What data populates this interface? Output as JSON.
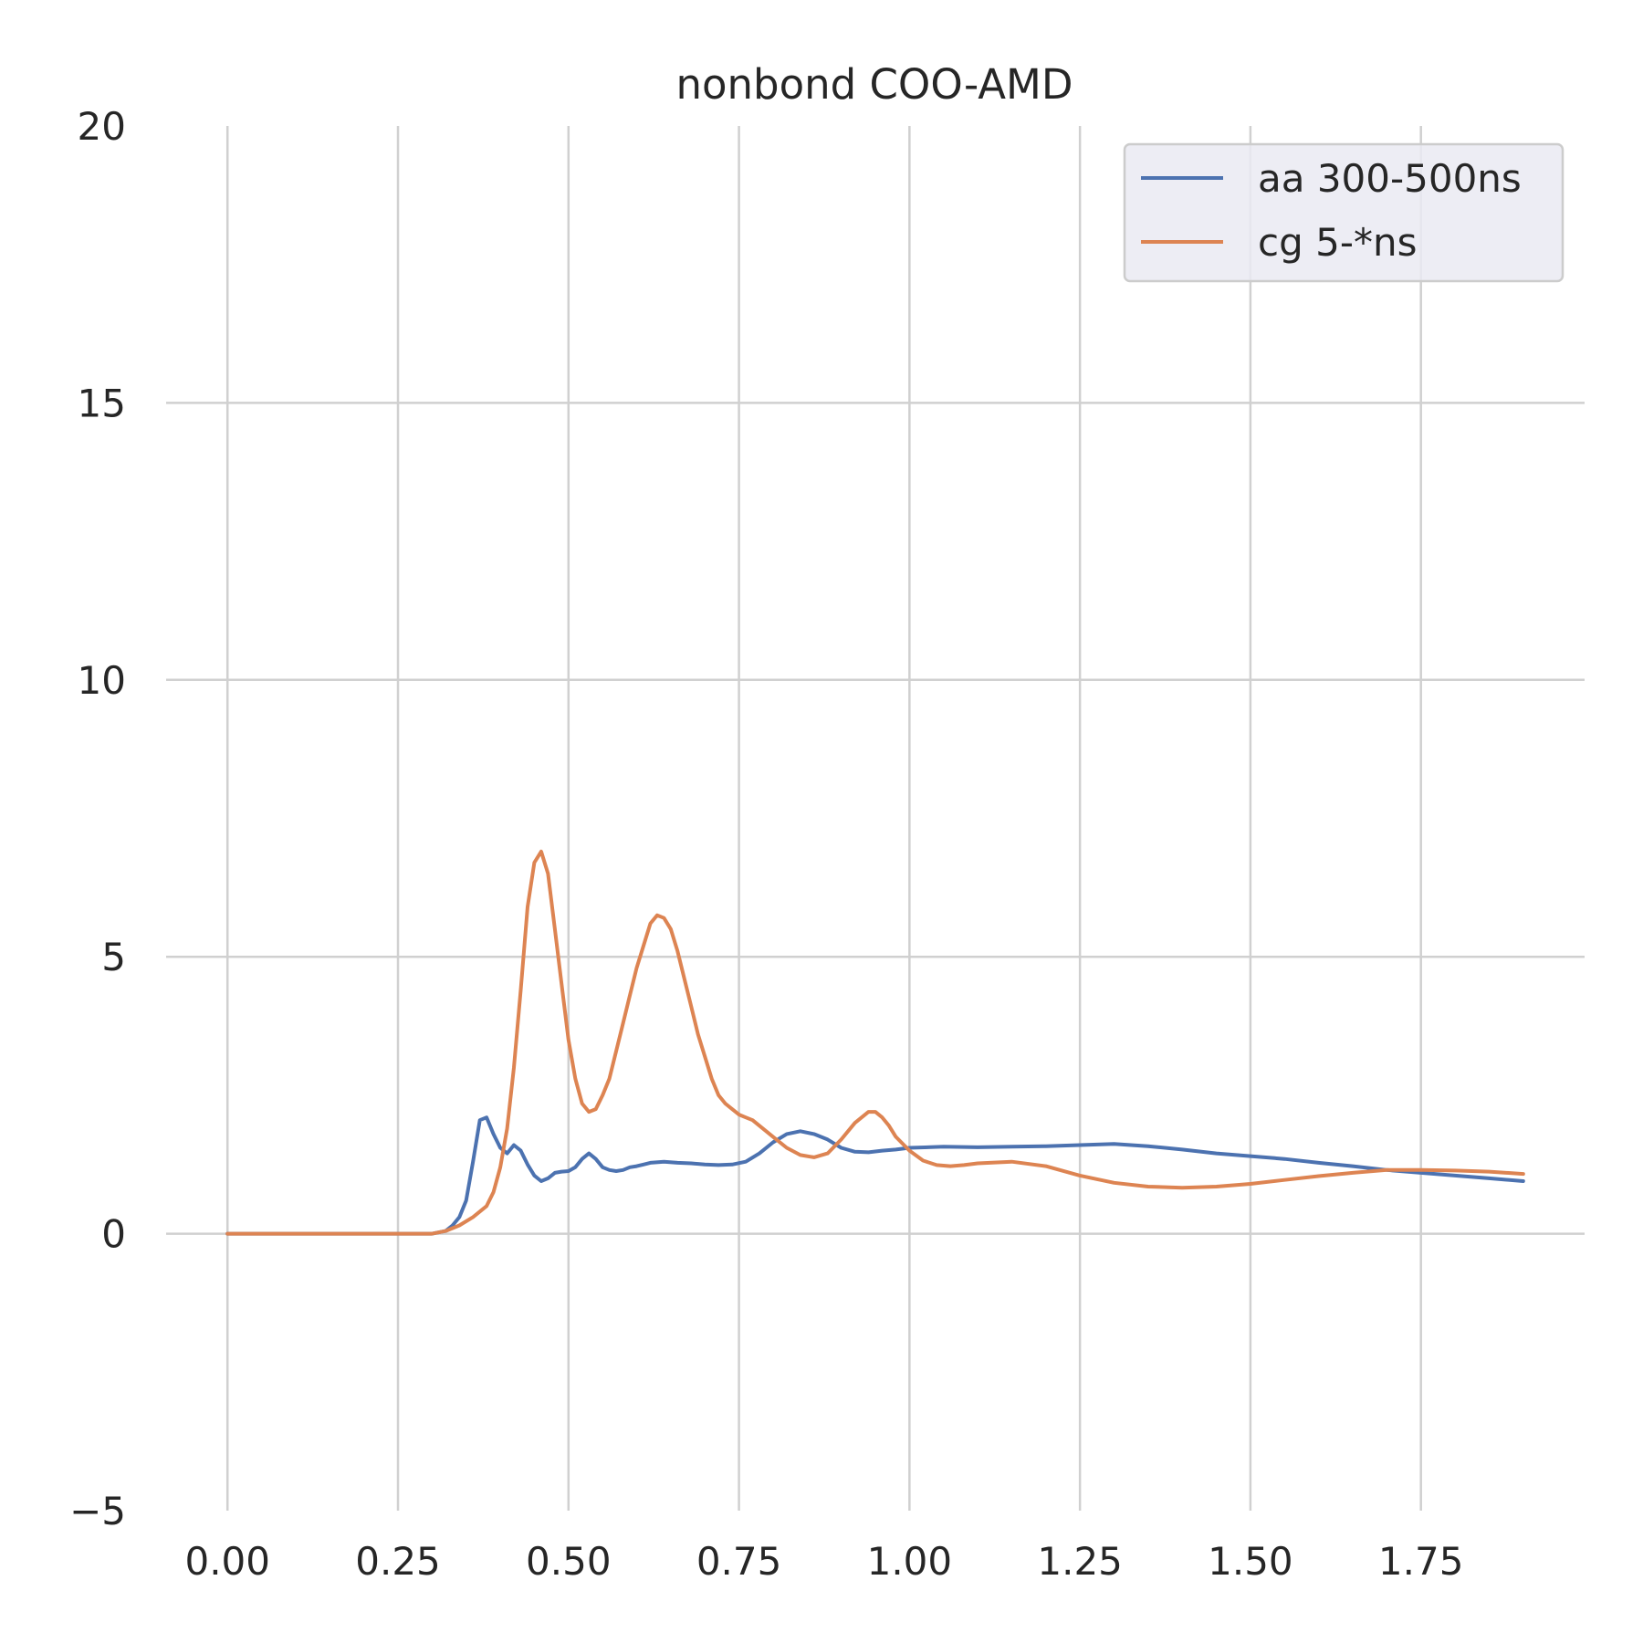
{
  "chart_data": {
    "type": "line",
    "title": "nonbond COO-AMD",
    "xlabel": "",
    "ylabel": "",
    "xlim": [
      -0.09,
      1.99
    ],
    "ylim": [
      -5,
      20
    ],
    "xticks": [
      "0.00",
      "0.25",
      "0.50",
      "0.75",
      "1.00",
      "1.25",
      "1.50",
      "1.75"
    ],
    "yticks": [
      "−5",
      "0",
      "5",
      "10",
      "15",
      "20"
    ],
    "xtick_values": [
      0.0,
      0.25,
      0.5,
      0.75,
      1.0,
      1.25,
      1.5,
      1.75
    ],
    "ytick_values": [
      -5,
      0,
      5,
      10,
      15,
      20
    ],
    "grid": true,
    "legend_position": "upper right",
    "series": [
      {
        "name": "aa 300-500ns",
        "color": "#4c72b0",
        "x": [
          0.0,
          0.25,
          0.3,
          0.32,
          0.33,
          0.34,
          0.35,
          0.36,
          0.37,
          0.38,
          0.39,
          0.4,
          0.41,
          0.42,
          0.43,
          0.44,
          0.45,
          0.46,
          0.47,
          0.48,
          0.49,
          0.5,
          0.51,
          0.52,
          0.53,
          0.54,
          0.55,
          0.56,
          0.57,
          0.58,
          0.59,
          0.6,
          0.61,
          0.62,
          0.64,
          0.66,
          0.68,
          0.7,
          0.72,
          0.74,
          0.76,
          0.78,
          0.8,
          0.82,
          0.84,
          0.86,
          0.88,
          0.9,
          0.92,
          0.94,
          0.96,
          0.98,
          1.0,
          1.05,
          1.1,
          1.15,
          1.2,
          1.25,
          1.3,
          1.35,
          1.4,
          1.45,
          1.5,
          1.55,
          1.6,
          1.65,
          1.7,
          1.75,
          1.8,
          1.85,
          1.9
        ],
        "y": [
          0.0,
          0.0,
          0.0,
          0.05,
          0.15,
          0.3,
          0.6,
          1.3,
          2.05,
          2.1,
          1.8,
          1.55,
          1.45,
          1.6,
          1.5,
          1.25,
          1.05,
          0.95,
          1.0,
          1.1,
          1.12,
          1.13,
          1.2,
          1.35,
          1.45,
          1.35,
          1.2,
          1.15,
          1.13,
          1.15,
          1.2,
          1.22,
          1.25,
          1.28,
          1.3,
          1.28,
          1.27,
          1.25,
          1.24,
          1.25,
          1.3,
          1.45,
          1.65,
          1.8,
          1.85,
          1.8,
          1.7,
          1.55,
          1.48,
          1.47,
          1.5,
          1.52,
          1.55,
          1.57,
          1.56,
          1.57,
          1.58,
          1.6,
          1.62,
          1.58,
          1.52,
          1.45,
          1.4,
          1.35,
          1.28,
          1.22,
          1.15,
          1.1,
          1.05,
          1.0,
          0.95
        ]
      },
      {
        "name": "cg 5-*ns",
        "color": "#dd8452",
        "x": [
          0.0,
          0.25,
          0.3,
          0.32,
          0.34,
          0.36,
          0.38,
          0.39,
          0.4,
          0.41,
          0.42,
          0.43,
          0.44,
          0.45,
          0.46,
          0.47,
          0.48,
          0.49,
          0.5,
          0.51,
          0.52,
          0.53,
          0.54,
          0.55,
          0.56,
          0.57,
          0.58,
          0.59,
          0.6,
          0.61,
          0.62,
          0.63,
          0.64,
          0.65,
          0.66,
          0.67,
          0.68,
          0.69,
          0.7,
          0.71,
          0.72,
          0.73,
          0.74,
          0.75,
          0.76,
          0.77,
          0.78,
          0.8,
          0.82,
          0.84,
          0.86,
          0.88,
          0.9,
          0.92,
          0.94,
          0.95,
          0.96,
          0.97,
          0.98,
          1.0,
          1.02,
          1.04,
          1.06,
          1.08,
          1.1,
          1.15,
          1.2,
          1.25,
          1.3,
          1.35,
          1.4,
          1.45,
          1.5,
          1.55,
          1.6,
          1.65,
          1.7,
          1.75,
          1.8,
          1.85,
          1.9
        ],
        "y": [
          0.0,
          0.0,
          0.0,
          0.05,
          0.15,
          0.3,
          0.5,
          0.75,
          1.2,
          1.9,
          3.0,
          4.4,
          5.9,
          6.7,
          6.9,
          6.5,
          5.5,
          4.5,
          3.5,
          2.8,
          2.35,
          2.2,
          2.25,
          2.5,
          2.8,
          3.3,
          3.8,
          4.3,
          4.8,
          5.2,
          5.6,
          5.75,
          5.7,
          5.5,
          5.1,
          4.6,
          4.1,
          3.6,
          3.2,
          2.8,
          2.5,
          2.35,
          2.25,
          2.15,
          2.1,
          2.05,
          1.95,
          1.75,
          1.55,
          1.42,
          1.38,
          1.45,
          1.7,
          2.0,
          2.2,
          2.2,
          2.1,
          1.95,
          1.75,
          1.5,
          1.32,
          1.24,
          1.22,
          1.24,
          1.27,
          1.3,
          1.22,
          1.05,
          0.92,
          0.85,
          0.83,
          0.85,
          0.9,
          0.97,
          1.04,
          1.1,
          1.15,
          1.15,
          1.14,
          1.12,
          1.08
        ]
      }
    ]
  }
}
